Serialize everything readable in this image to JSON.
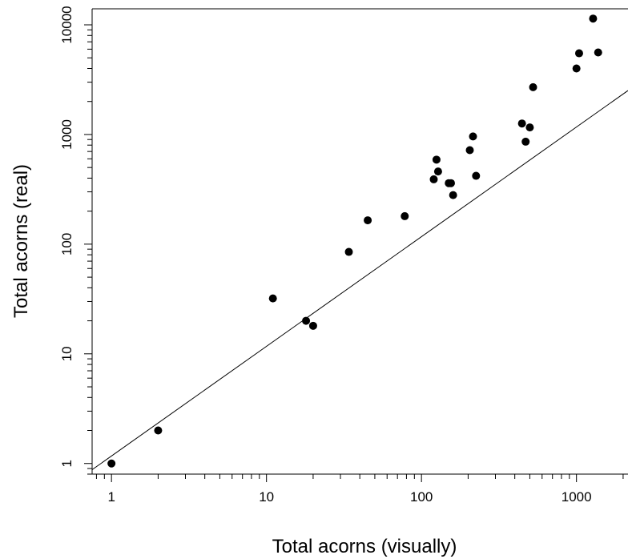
{
  "chart_data": {
    "type": "scatter",
    "title": "",
    "xlabel": "Total acorns (visually)",
    "ylabel": "Total acorns (real)",
    "xscale": "log",
    "yscale": "log",
    "xlim": [
      0.75,
      2150
    ],
    "ylim": [
      0.8,
      14000
    ],
    "x_ticks": [
      1,
      10,
      100,
      1000
    ],
    "x_tick_labels": [
      "1",
      "10",
      "100",
      "1000"
    ],
    "y_ticks": [
      1,
      10,
      100,
      1000,
      10000
    ],
    "y_tick_labels": [
      "1",
      "10",
      "100",
      "1000",
      "10000"
    ],
    "grid": false,
    "legend": "none",
    "point_color": "#000000",
    "points": [
      {
        "x": 1,
        "y": 1
      },
      {
        "x": 2,
        "y": 2
      },
      {
        "x": 11,
        "y": 32
      },
      {
        "x": 18,
        "y": 20
      },
      {
        "x": 20,
        "y": 18
      },
      {
        "x": 34,
        "y": 85
      },
      {
        "x": 45,
        "y": 165
      },
      {
        "x": 78,
        "y": 180
      },
      {
        "x": 120,
        "y": 390
      },
      {
        "x": 125,
        "y": 590
      },
      {
        "x": 128,
        "y": 460
      },
      {
        "x": 150,
        "y": 360
      },
      {
        "x": 155,
        "y": 360
      },
      {
        "x": 160,
        "y": 280
      },
      {
        "x": 205,
        "y": 720
      },
      {
        "x": 215,
        "y": 960
      },
      {
        "x": 225,
        "y": 420
      },
      {
        "x": 445,
        "y": 1260
      },
      {
        "x": 470,
        "y": 860
      },
      {
        "x": 500,
        "y": 1160
      },
      {
        "x": 525,
        "y": 2700
      },
      {
        "x": 1000,
        "y": 4000
      },
      {
        "x": 1040,
        "y": 5500
      },
      {
        "x": 1280,
        "y": 11400
      },
      {
        "x": 1380,
        "y": 5600
      }
    ],
    "fit_line": {
      "slope": 1.17,
      "intercept": 0,
      "color": "#000000"
    }
  }
}
